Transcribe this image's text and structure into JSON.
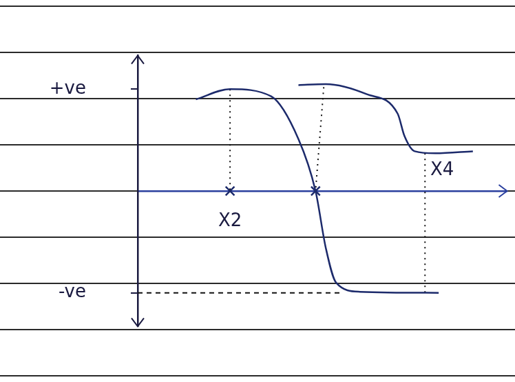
{
  "chart_data": {
    "type": "line",
    "xlim": [
      0,
      5.4
    ],
    "ylim": [
      -1.33,
      1.33
    ],
    "yticks": [
      {
        "value": 1,
        "label": "+ve"
      },
      {
        "value": -1,
        "label": "-ve"
      }
    ],
    "grid": false,
    "tick_labels": "y",
    "series": [
      {
        "x": [
          0.85,
          1.35,
          1.95,
          2.35,
          2.6,
          2.75,
          2.9,
          3.25,
          4.4
        ],
        "values": [
          0.9,
          1.0,
          0.93,
          0.51,
          0,
          -0.56,
          -0.9,
          -0.99,
          -1.0
        ],
        "color": "#1c2a6b",
        "line_style": "solid"
      },
      {
        "x": [
          2.35,
          2.75,
          3.35,
          3.8,
          3.9,
          4.05,
          4.35,
          4.9
        ],
        "values": [
          1.04,
          1.05,
          0.95,
          0.76,
          0.54,
          0.39,
          0.37,
          0.39
        ],
        "color": "#1c2a6b",
        "line_style": "solid"
      },
      {
        "x": [
          1.35,
          1.35
        ],
        "values": [
          1.0,
          0
        ],
        "color": "#111111",
        "line_style": "dotted"
      },
      {
        "x": [
          2.72,
          2.6
        ],
        "values": [
          1.02,
          0
        ],
        "color": "#111111",
        "line_style": "dotted"
      },
      {
        "x": [
          4.2,
          4.2
        ],
        "values": [
          0.37,
          -1.0
        ],
        "color": "#111111",
        "line_style": "dotted"
      },
      {
        "x": [
          0,
          3.0
        ],
        "values": [
          -1,
          -1
        ],
        "color": "#111111",
        "line_style": "dashed"
      },
      {
        "x": [
          1.35,
          2.6
        ],
        "values": [
          0,
          0
        ],
        "type": "scatter",
        "marker": "cross",
        "color": "#1c2a6b"
      }
    ],
    "annotations": [
      {
        "text": "X2",
        "x": 1.35,
        "y": -0.3
      },
      {
        "text": "X4",
        "x": 4.45,
        "y": 0.2
      }
    ]
  }
}
